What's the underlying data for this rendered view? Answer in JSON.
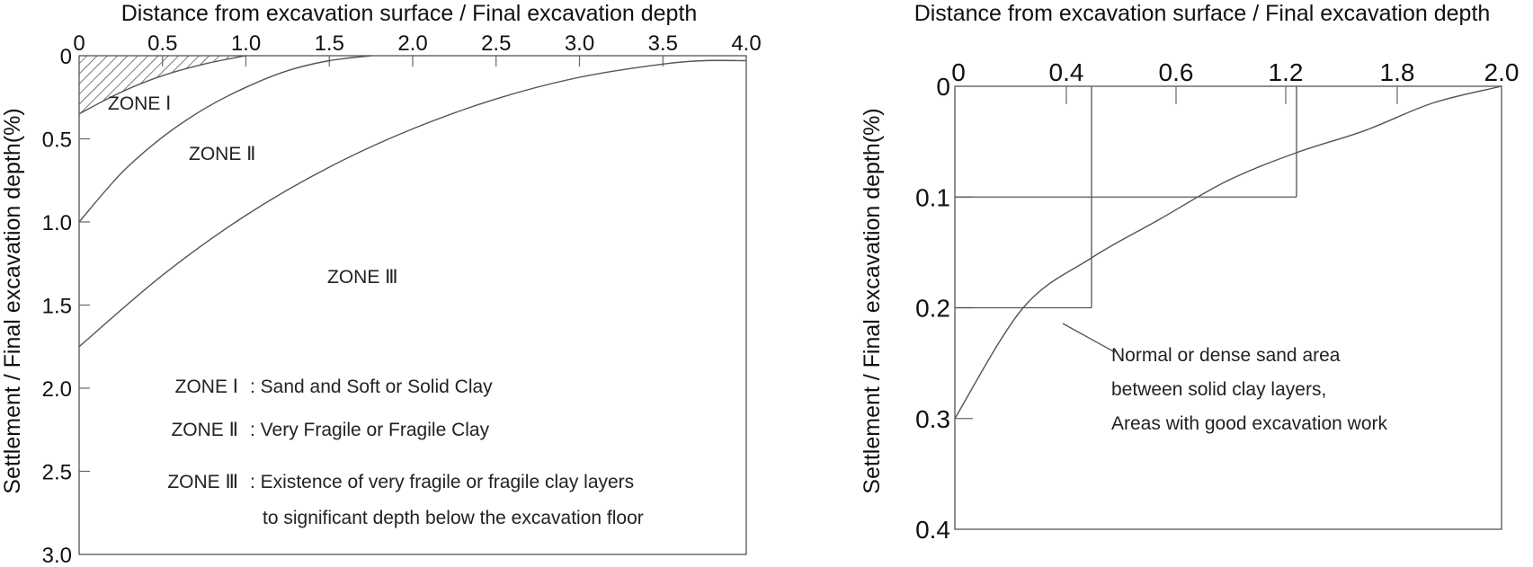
{
  "chart_data": [
    {
      "type": "line",
      "xlabel": "Distance from excavation surface / Final excavation depth",
      "ylabel": "Settlement / Final excavation depth(%)",
      "xlim": [
        0,
        4.0
      ],
      "ylim": [
        0,
        3.0
      ],
      "x_ticks": [
        "0",
        "0.5",
        "1.0",
        "1.5",
        "2.0",
        "2.5",
        "3.0",
        "3.5",
        "4.0"
      ],
      "y_ticks": [
        "0",
        "0.5",
        "1.0",
        "1.5",
        "2.0",
        "2.5",
        "3.0"
      ],
      "y_inverted": true,
      "x_axis_position": "top",
      "series": [
        {
          "x": [
            0,
            0.25,
            0.5,
            0.75,
            1.0
          ],
          "y": [
            0.35,
            0.22,
            0.12,
            0.05,
            0.0
          ]
        },
        {
          "x": [
            0,
            0.25,
            0.5,
            0.75,
            1.0,
            1.25,
            1.5,
            1.75
          ],
          "y": [
            1.0,
            0.71,
            0.49,
            0.32,
            0.19,
            0.09,
            0.03,
            0.0
          ]
        },
        {
          "x": [
            0,
            0.5,
            1.0,
            1.5,
            2.0,
            2.5,
            3.0,
            3.5,
            3.75,
            4.0
          ],
          "y": [
            1.75,
            1.32,
            0.96,
            0.67,
            0.44,
            0.26,
            0.13,
            0.05,
            0.03,
            0.03
          ]
        }
      ],
      "shaded_region": "ZONE I (hatched)",
      "zone_labels": [
        "ZONE Ⅰ",
        "ZONE Ⅱ",
        "ZONE Ⅲ"
      ],
      "legend": [
        {
          "key": "ZONE Ⅰ",
          "text": ": Sand and Soft or Solid Clay"
        },
        {
          "key": "ZONE Ⅱ",
          "text": ": Very Fragile or Fragile Clay"
        },
        {
          "key": "ZONE Ⅲ",
          "text": ": Existence of very fragile or fragile clay layers"
        },
        {
          "key": "",
          "text": "to significant depth below the excavation floor"
        }
      ]
    },
    {
      "type": "line",
      "xlabel": "Distance from excavation surface / Final excavation depth",
      "ylabel": "Settlement / Final excavation depth(%)",
      "x_ticks": [
        "0",
        "0.4",
        "0.6",
        "1.2",
        "1.8",
        "2.0"
      ],
      "y_ticks": [
        "0",
        "0.1",
        "0.2",
        "0.3",
        "0.4"
      ],
      "ylim": [
        0,
        0.4
      ],
      "y_inverted": true,
      "x_axis_position": "top",
      "series": [
        {
          "x": [
            0,
            0.25,
            0.5,
            0.75,
            1.0,
            1.25,
            1.5,
            1.75,
            2.0
          ],
          "y": [
            0.3,
            0.2,
            0.155,
            0.12,
            0.085,
            0.06,
            0.04,
            0.015,
            0.0
          ]
        }
      ],
      "reference_lines": [
        {
          "x": 0.5,
          "y": 0.2
        },
        {
          "x": 1.25,
          "y": 0.1
        }
      ],
      "annotation": [
        "Normal or dense sand area",
        "between solid clay layers,",
        "Areas with good excavation work"
      ]
    }
  ]
}
